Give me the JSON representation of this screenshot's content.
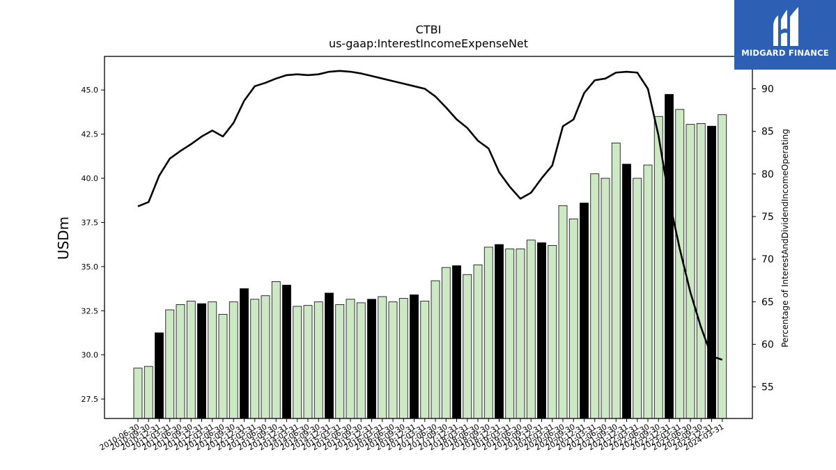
{
  "chart_data": {
    "type": "bar",
    "title": "CTBI",
    "subtitle": "us-gaap:InterestIncomeExpenseNet",
    "ylabel": "USDm",
    "y2label": "Percentage of InterestAndDividendIncomeOperating",
    "ylim": [
      26.4,
      46.9
    ],
    "y2lim": [
      51.3,
      93.8
    ],
    "yticks": [
      "27.5",
      "30.0",
      "32.5",
      "35.0",
      "37.5",
      "40.0",
      "42.5",
      "45.0"
    ],
    "y2ticks": [
      "55",
      "60",
      "65",
      "70",
      "75",
      "80",
      "85",
      "90"
    ],
    "categories": [
      "2010-06-30",
      "2010-09-30",
      "2010-12-31",
      "2011-03-31",
      "2011-06-30",
      "2011-09-30",
      "2011-12-31",
      "2012-03-31",
      "2012-06-30",
      "2012-09-30",
      "2012-12-31",
      "2013-03-31",
      "2013-06-30",
      "2013-09-30",
      "2013-12-31",
      "2014-03-31",
      "2014-06-30",
      "2014-09-30",
      "2014-12-31",
      "2015-03-31",
      "2015-06-30",
      "2015-09-30",
      "2015-12-31",
      "2016-03-31",
      "2016-06-30",
      "2016-09-30",
      "2016-12-31",
      "2017-03-31",
      "2017-06-30",
      "2017-09-30",
      "2017-12-31",
      "2018-03-31",
      "2018-06-30",
      "2018-09-30",
      "2018-12-31",
      "2019-03-31",
      "2019-06-30",
      "2019-09-30",
      "2019-12-31",
      "2020-03-31",
      "2020-06-30",
      "2020-09-30",
      "2020-12-31",
      "2021-03-31",
      "2021-06-30",
      "2021-09-30",
      "2021-12-31",
      "2022-03-31",
      "2022-06-30",
      "2022-09-30",
      "2022-12-31",
      "2023-03-31",
      "2023-06-30",
      "2023-09-30",
      "2023-12-31",
      "2024-03-31"
    ],
    "series": [
      {
        "values": [
          29.25,
          29.35,
          31.25,
          32.55,
          32.85,
          33.05,
          32.9,
          33.0,
          32.3,
          33.0,
          33.75,
          33.15,
          33.35,
          34.15,
          33.95,
          32.75,
          32.8,
          33.0,
          33.5,
          32.85,
          33.15,
          32.95,
          33.15,
          33.3,
          33.0,
          33.2,
          33.4,
          33.05,
          34.2,
          34.95,
          35.05,
          34.55,
          35.1,
          36.1,
          36.25,
          36.0,
          36.0,
          36.5,
          36.35,
          36.2,
          38.45,
          37.7,
          38.6,
          40.25,
          40.0,
          42.0,
          40.8,
          40.0,
          40.75,
          43.5,
          44.75,
          43.9,
          43.05,
          43.1,
          42.95,
          43.6
        ],
        "highlight_color": "#000000",
        "color": "#cde8c5"
      },
      {
        "axis": "right",
        "values": [
          76.2,
          76.7,
          79.8,
          81.8,
          82.7,
          83.5,
          84.4,
          85.1,
          84.4,
          86.0,
          88.6,
          90.3,
          90.7,
          91.2,
          91.6,
          91.7,
          91.6,
          91.7,
          92.0,
          92.1,
          92.0,
          91.8,
          91.5,
          91.2,
          90.9,
          90.6,
          90.3,
          90.0,
          89.1,
          87.8,
          86.4,
          85.4,
          83.9,
          83.0,
          80.2,
          78.5,
          77.1,
          77.8,
          79.5,
          81.0,
          85.6,
          86.4,
          89.5,
          91.0,
          91.2,
          91.9,
          92.0,
          91.9,
          90.0,
          84.5,
          77.0,
          71.2,
          66.1,
          62.0,
          58.6,
          58.2
        ],
        "color": "#000000"
      }
    ],
    "highlight_every": 4,
    "highlight_offset": 2
  },
  "logo": {
    "text": "MIDGARD FINANCE"
  }
}
